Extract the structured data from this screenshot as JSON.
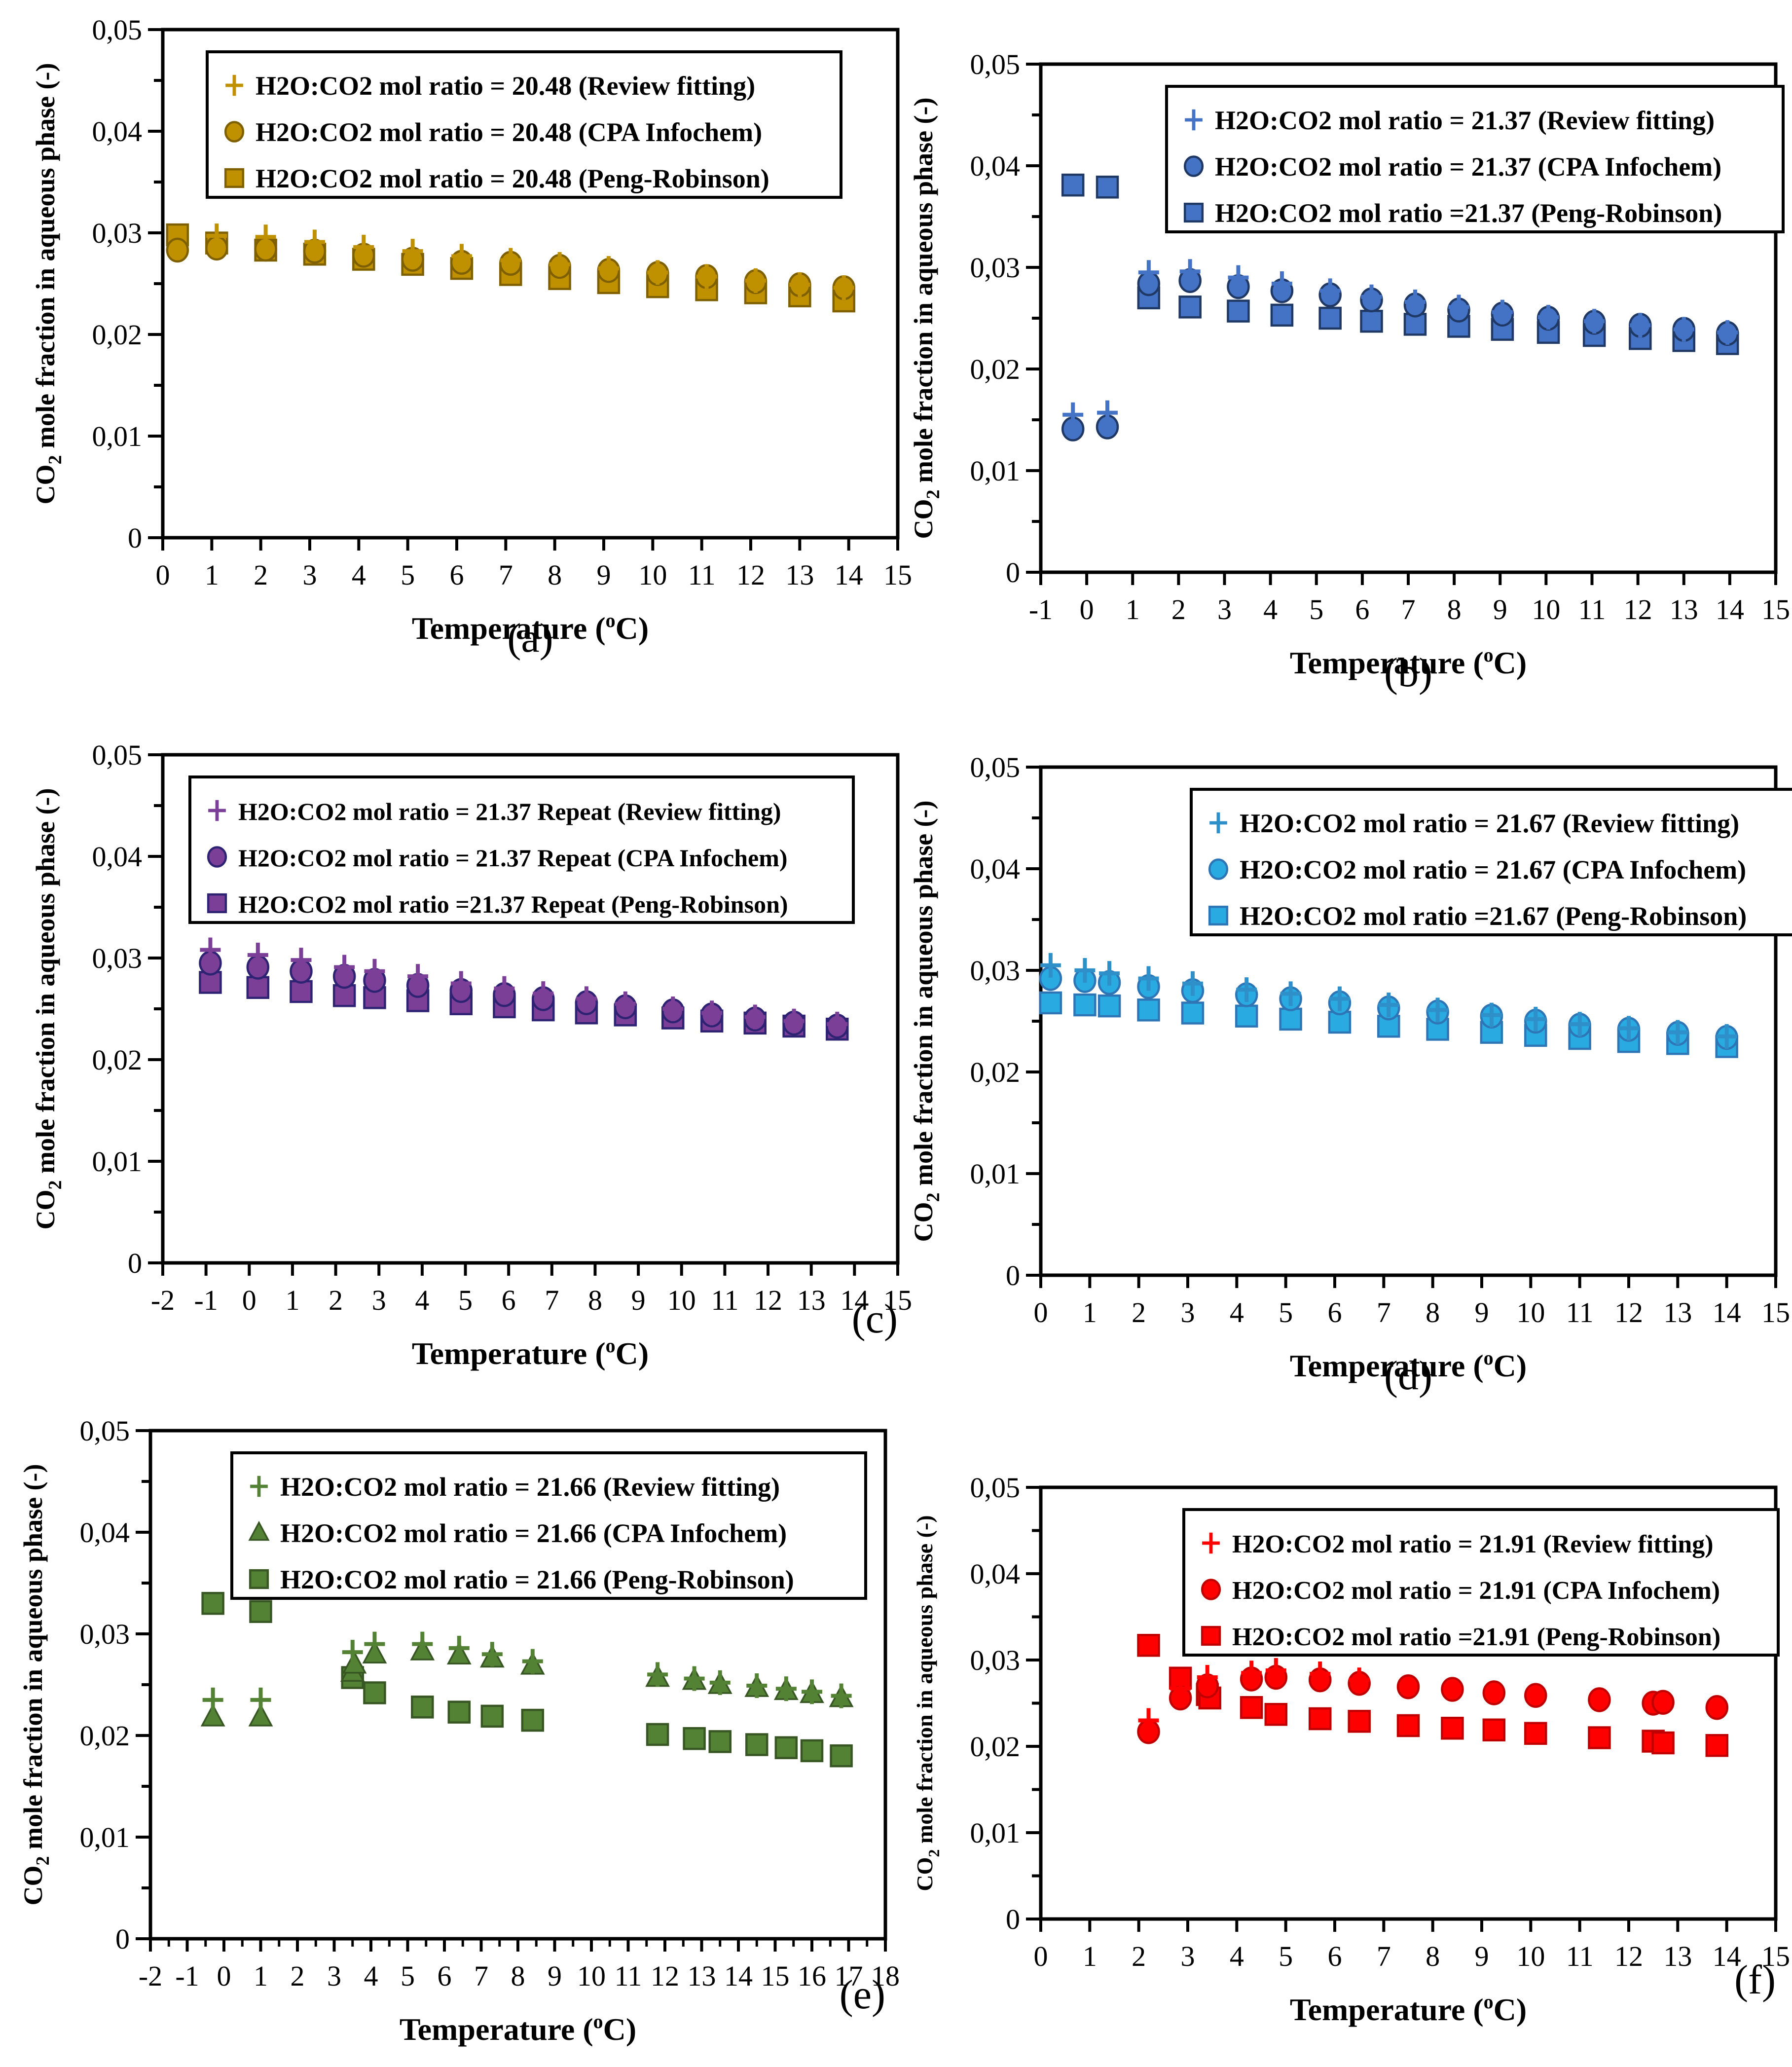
{
  "page": {
    "background": "#ffffff"
  },
  "shared": {
    "y_axis_title": {
      "prefix": "CO",
      "sub": "2",
      "suffix": " mole fraction in aqueous phase (-)"
    },
    "x_axis_title": {
      "prefix": "Temperature (",
      "sup": "o",
      "suffix": "C)"
    },
    "y_tick_labels": [
      "0",
      "0,01",
      "0,02",
      "0,03",
      "0,04",
      "0,05"
    ],
    "ylim": [
      0,
      0.05
    ],
    "grid": "off",
    "legend_position": "top-inside-box",
    "marker_legend": {
      "plus": "Review fitting",
      "circle": "CPA Infochem",
      "triangle": "CPA Infochem",
      "square": "Peng-Robinson"
    }
  },
  "chart_data": [
    {
      "id": "a",
      "type": "scatter",
      "panel_label": "(a)",
      "panel_align": "center",
      "colors": {
        "fill": "#BF9000",
        "stroke": "#7F6000",
        "plus": "#BF9000"
      },
      "x_min": 0,
      "x_max": 15,
      "legend": [
        {
          "marker": "plus",
          "label": "H2O:CO2 mol ratio = 20.48 (Review fitting)"
        },
        {
          "marker": "circle",
          "label": "H2O:CO2 mol ratio = 20.48 (CPA Infochem)"
        },
        {
          "marker": "square",
          "label": "H2O:CO2 mol ratio = 20.48 (Peng-Robinson)"
        }
      ],
      "series": [
        {
          "name": "Review fitting",
          "marker": "plus",
          "x": [
            1.1,
            2.1,
            3.1,
            4.1,
            5.1,
            6.1,
            7.1,
            8.1,
            9.1,
            10.1,
            11.1,
            12.1,
            13.0,
            13.9
          ],
          "y": [
            0.0297,
            0.0296,
            0.0291,
            0.0286,
            0.0282,
            0.0277,
            0.0273,
            0.0269,
            0.0265,
            0.0261,
            0.0257,
            0.0253,
            0.0249,
            0.0246
          ]
        },
        {
          "name": "CPA Infochem",
          "marker": "circle",
          "x": [
            0.3,
            1.1,
            2.1,
            3.1,
            4.1,
            5.1,
            6.1,
            7.1,
            8.1,
            9.1,
            10.1,
            11.1,
            12.1,
            13.0,
            13.9
          ],
          "y": [
            0.0283,
            0.0285,
            0.0284,
            0.0282,
            0.0278,
            0.0274,
            0.0271,
            0.027,
            0.0267,
            0.0263,
            0.026,
            0.0257,
            0.0252,
            0.0249,
            0.0246
          ]
        },
        {
          "name": "Peng-Robinson",
          "marker": "square",
          "x": [
            0.3,
            1.1,
            2.1,
            3.1,
            4.1,
            5.1,
            6.1,
            7.1,
            8.1,
            9.1,
            10.1,
            11.1,
            12.1,
            13.0,
            13.9
          ],
          "y": [
            0.0298,
            0.029,
            0.0283,
            0.0279,
            0.0274,
            0.0269,
            0.0265,
            0.0259,
            0.0255,
            0.0251,
            0.0247,
            0.0244,
            0.0241,
            0.0238,
            0.0233
          ]
        }
      ]
    },
    {
      "id": "b",
      "type": "scatter",
      "panel_label": "(b)",
      "panel_align": "center",
      "colors": {
        "fill": "#4472C4",
        "stroke": "#1F3864",
        "plus": "#4472C4"
      },
      "x_min": -1,
      "x_max": 15,
      "legend": [
        {
          "marker": "plus",
          "label": "H2O:CO2 mol ratio = 21.37 (Review fitting)"
        },
        {
          "marker": "circle",
          "label": "H2O:CO2 mol ratio = 21.37 (CPA Infochem)"
        },
        {
          "marker": "square",
          "label": "H2O:CO2 mol ratio =21.37 (Peng-Robinson)"
        }
      ],
      "series": [
        {
          "name": "Review fitting",
          "marker": "plus",
          "x": [
            -0.3,
            0.45,
            1.35,
            2.25,
            3.3,
            4.25,
            5.3,
            6.2,
            7.15,
            8.1,
            9.05,
            10.05,
            11.05,
            12.05,
            13.0,
            13.95
          ],
          "y": [
            0.0155,
            0.0157,
            0.0295,
            0.0296,
            0.029,
            0.0284,
            0.0277,
            0.0271,
            0.0266,
            0.0261,
            0.0256,
            0.0251,
            0.0247,
            0.0243,
            0.0239,
            0.0236
          ]
        },
        {
          "name": "CPA Infochem",
          "marker": "circle",
          "x": [
            -0.3,
            0.45,
            1.35,
            2.25,
            3.3,
            4.25,
            5.3,
            6.2,
            7.15,
            8.1,
            9.05,
            10.05,
            11.05,
            12.05,
            13.0,
            13.95
          ],
          "y": [
            0.0141,
            0.0143,
            0.0284,
            0.0287,
            0.0281,
            0.0277,
            0.0273,
            0.0268,
            0.0263,
            0.0258,
            0.0254,
            0.025,
            0.0246,
            0.0243,
            0.0239,
            0.0235
          ]
        },
        {
          "name": "Peng-Robinson",
          "marker": "square",
          "x": [
            -0.3,
            0.45,
            1.35,
            2.25,
            3.3,
            4.25,
            5.3,
            6.2,
            7.15,
            8.1,
            9.05,
            10.05,
            11.05,
            12.05,
            13.0,
            13.95
          ],
          "y": [
            0.0381,
            0.0379,
            0.027,
            0.0261,
            0.0257,
            0.0253,
            0.025,
            0.0247,
            0.0244,
            0.0242,
            0.0239,
            0.0236,
            0.0233,
            0.023,
            0.0228,
            0.0225
          ]
        }
      ]
    },
    {
      "id": "c",
      "type": "scatter",
      "panel_label": "(c)",
      "panel_align": "right",
      "colors": {
        "fill": "#7C3F98",
        "stroke": "#2E2373",
        "plus": "#7C3F98"
      },
      "x_min": -2,
      "x_max": 15,
      "legend": [
        {
          "marker": "plus",
          "label": "H2O:CO2 mol ratio = 21.37 Repeat (Review fitting)"
        },
        {
          "marker": "circle",
          "label": "H2O:CO2 mol ratio = 21.37 Repeat (CPA Infochem)"
        },
        {
          "marker": "square",
          "label": "H2O:CO2 mol ratio =21.37 Repeat (Peng-Robinson)"
        }
      ],
      "series": [
        {
          "name": "Review fitting",
          "marker": "plus",
          "x": [
            -0.9,
            0.2,
            1.2,
            2.2,
            2.9,
            3.9,
            4.9,
            5.9,
            6.8,
            7.8,
            8.7,
            9.8,
            10.7,
            11.7,
            12.6,
            13.6
          ],
          "y": [
            0.0308,
            0.0303,
            0.0298,
            0.0291,
            0.0287,
            0.0282,
            0.0275,
            0.027,
            0.0265,
            0.026,
            0.0255,
            0.025,
            0.0246,
            0.0242,
            0.0238,
            0.0235
          ]
        },
        {
          "name": "CPA Infochem",
          "marker": "circle",
          "x": [
            -0.9,
            0.2,
            1.2,
            2.2,
            2.9,
            3.9,
            4.9,
            5.9,
            6.8,
            7.8,
            8.7,
            9.8,
            10.7,
            11.7,
            12.6,
            13.6
          ],
          "y": [
            0.0295,
            0.0291,
            0.0287,
            0.0282,
            0.0278,
            0.0273,
            0.0268,
            0.0264,
            0.026,
            0.0256,
            0.0252,
            0.0248,
            0.0244,
            0.024,
            0.0236,
            0.0233
          ]
        },
        {
          "name": "Peng-Robinson",
          "marker": "square",
          "x": [
            -0.9,
            0.2,
            1.2,
            2.2,
            2.9,
            3.9,
            4.9,
            5.9,
            6.8,
            7.8,
            8.7,
            9.8,
            10.7,
            11.7,
            12.6,
            13.6
          ],
          "y": [
            0.0276,
            0.0271,
            0.0267,
            0.0263,
            0.0261,
            0.0258,
            0.0255,
            0.0252,
            0.0249,
            0.0246,
            0.0244,
            0.0241,
            0.0238,
            0.0236,
            0.0233,
            0.023
          ]
        }
      ]
    },
    {
      "id": "d",
      "type": "scatter",
      "panel_label": "(d)",
      "panel_align": "center",
      "colors": {
        "fill": "#29ABE2",
        "stroke": "#2E75B6",
        "plus": "#2E8FC9"
      },
      "x_min": 0,
      "x_max": 15,
      "legend": [
        {
          "marker": "plus",
          "label": "H2O:CO2 mol ratio = 21.67 (Review fitting)"
        },
        {
          "marker": "circle",
          "label": "H2O:CO2 mol ratio = 21.67 (CPA Infochem)"
        },
        {
          "marker": "square",
          "label": "H2O:CO2 mol ratio =21.67 (Peng-Robinson)"
        }
      ],
      "series": [
        {
          "name": "Review fitting",
          "marker": "plus",
          "x": [
            0.2,
            0.9,
            1.4,
            2.2,
            3.1,
            4.2,
            5.1,
            6.1,
            7.1,
            8.1,
            9.2,
            10.1,
            11.0,
            12.0,
            13.0,
            14.0
          ],
          "y": [
            0.0305,
            0.03,
            0.0297,
            0.0292,
            0.0287,
            0.0281,
            0.0277,
            0.0272,
            0.0266,
            0.0261,
            0.0256,
            0.0252,
            0.0247,
            0.0243,
            0.0239,
            0.0235
          ]
        },
        {
          "name": "CPA Infochem",
          "marker": "circle",
          "x": [
            0.2,
            0.9,
            1.4,
            2.2,
            3.1,
            4.2,
            5.1,
            6.1,
            7.1,
            8.1,
            9.2,
            10.1,
            11.0,
            12.0,
            13.0,
            14.0
          ],
          "y": [
            0.0292,
            0.029,
            0.0288,
            0.0284,
            0.028,
            0.0276,
            0.0272,
            0.0268,
            0.0263,
            0.0259,
            0.0255,
            0.025,
            0.0246,
            0.0242,
            0.0238,
            0.0234
          ]
        },
        {
          "name": "Peng-Robinson",
          "marker": "square",
          "x": [
            0.2,
            0.9,
            1.4,
            2.2,
            3.1,
            4.2,
            5.1,
            6.1,
            7.1,
            8.1,
            9.2,
            10.1,
            11.0,
            12.0,
            13.0,
            14.0
          ],
          "y": [
            0.0268,
            0.0266,
            0.0265,
            0.0261,
            0.0258,
            0.0255,
            0.0252,
            0.0249,
            0.0245,
            0.0242,
            0.0239,
            0.0236,
            0.0233,
            0.023,
            0.0228,
            0.0225
          ]
        }
      ]
    },
    {
      "id": "e",
      "type": "scatter",
      "panel_label": "(e)",
      "panel_align": "right",
      "colors": {
        "fill": "#538234",
        "stroke": "#375623",
        "plus": "#538234"
      },
      "x_min": -2,
      "x_max": 18,
      "legend": [
        {
          "marker": "plus",
          "label": "H2O:CO2 mol ratio = 21.66 (Review fitting)"
        },
        {
          "marker": "triangle",
          "label": "H2O:CO2 mol ratio = 21.66 (CPA Infochem)"
        },
        {
          "marker": "square",
          "label": "H2O:CO2 mol ratio = 21.66 (Peng-Robinson)"
        }
      ],
      "series": [
        {
          "name": "Review fitting",
          "marker": "plus",
          "x": [
            -0.3,
            1.0,
            3.5,
            4.1,
            5.4,
            6.4,
            7.3,
            8.4,
            11.8,
            12.8,
            13.5,
            14.5,
            15.3,
            16.0,
            16.8
          ],
          "y": [
            0.0235,
            0.0235,
            0.0282,
            0.029,
            0.029,
            0.0286,
            0.028,
            0.0273,
            0.026,
            0.0256,
            0.0252,
            0.0249,
            0.0246,
            0.0243,
            0.0239
          ]
        },
        {
          "name": "CPA Infochem",
          "marker": "triangle",
          "x": [
            -0.3,
            1.0,
            3.5,
            3.55,
            4.1,
            5.4,
            6.4,
            7.3,
            8.4,
            11.8,
            12.8,
            13.5,
            14.5,
            15.3,
            16.0,
            16.8
          ],
          "y": [
            0.0218,
            0.0218,
            0.0262,
            0.027,
            0.028,
            0.0283,
            0.0279,
            0.0276,
            0.0269,
            0.0257,
            0.0254,
            0.025,
            0.0247,
            0.0244,
            0.0241,
            0.0237
          ]
        },
        {
          "name": "Peng-Robinson",
          "marker": "square",
          "x": [
            -0.3,
            1.0,
            3.5,
            4.1,
            5.4,
            6.4,
            7.3,
            8.4,
            11.8,
            12.8,
            13.5,
            14.5,
            15.3,
            16.0,
            16.8
          ],
          "y": [
            0.033,
            0.0322,
            0.0257,
            0.0242,
            0.0228,
            0.0223,
            0.0219,
            0.0215,
            0.0201,
            0.0197,
            0.0194,
            0.0191,
            0.0188,
            0.0185,
            0.018
          ]
        }
      ]
    },
    {
      "id": "f",
      "type": "scatter",
      "panel_label": "(f)",
      "panel_align": "right-f",
      "colors": {
        "fill": "#FF0000",
        "stroke": "#C00000",
        "plus": "#FF0000"
      },
      "x_min": 0,
      "x_max": 15,
      "legend": [
        {
          "marker": "plus",
          "label": "H2O:CO2 mol ratio = 21.91 (Review fitting)"
        },
        {
          "marker": "circle",
          "label": "H2O:CO2 mol ratio = 21.91 (CPA Infochem)"
        },
        {
          "marker": "square",
          "label": "H2O:CO2 mol ratio =21.91 (Peng-Robinson)"
        }
      ],
      "series": [
        {
          "name": "Review fitting",
          "marker": "plus",
          "x": [
            2.2,
            2.85,
            3.4,
            4.3,
            4.8,
            5.7,
            6.5
          ],
          "y": [
            0.023,
            0.0267,
            0.028,
            0.0285,
            0.0288,
            0.0284,
            0.0277
          ]
        },
        {
          "name": "CPA Infochem",
          "marker": "circle",
          "x": [
            2.2,
            2.85,
            3.4,
            4.3,
            4.8,
            5.7,
            6.5,
            7.5,
            8.4,
            9.25,
            10.1,
            11.4,
            12.5,
            12.7,
            13.8
          ],
          "y": [
            0.0217,
            0.0256,
            0.027,
            0.0278,
            0.028,
            0.0277,
            0.0273,
            0.0269,
            0.0266,
            0.0262,
            0.0259,
            0.0254,
            0.025,
            0.0251,
            0.0245
          ]
        },
        {
          "name": "Peng-Robinson",
          "marker": "square",
          "x": [
            2.2,
            2.85,
            3.4,
            3.45,
            4.3,
            4.8,
            5.7,
            6.5,
            7.5,
            8.4,
            9.25,
            10.1,
            11.4,
            12.5,
            12.7,
            13.8
          ],
          "y": [
            0.0317,
            0.0279,
            0.026,
            0.0256,
            0.0245,
            0.0237,
            0.0232,
            0.0229,
            0.0224,
            0.0221,
            0.0219,
            0.0215,
            0.021,
            0.0206,
            0.0204,
            0.0201
          ]
        }
      ]
    }
  ]
}
